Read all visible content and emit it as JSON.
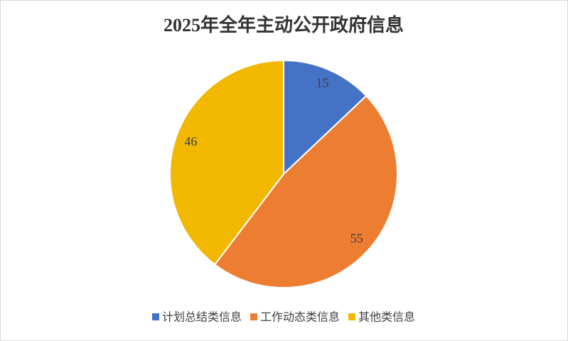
{
  "chart_data": {
    "type": "pie",
    "title": "2025年全年主动公开政府信息",
    "categories": [
      "计划总结类信息",
      "工作动态类信息",
      "其他类信息"
    ],
    "values": [
      15,
      55,
      46
    ],
    "colors": [
      "#4472c4",
      "#ed7d31",
      "#f2b800"
    ],
    "legend": "bottom"
  }
}
